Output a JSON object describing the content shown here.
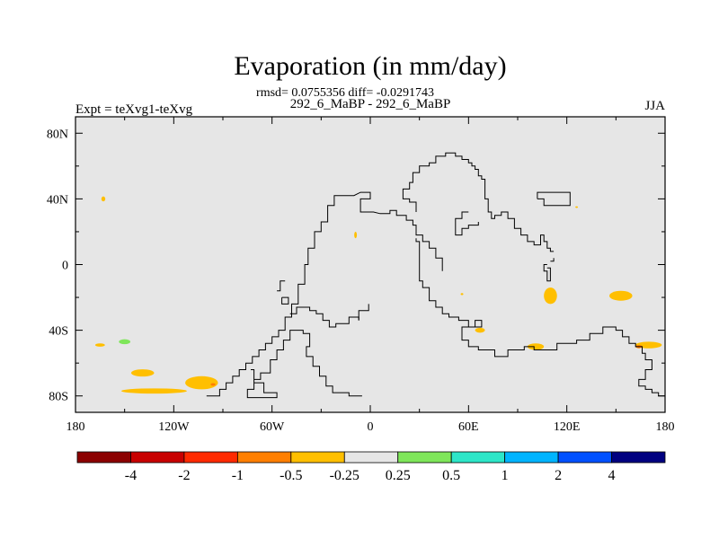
{
  "chart_data": {
    "type": "heatmap",
    "title": "Evaporation (in mm/day)",
    "stats": "rmsd= 0.0755356 diff= -0.0291743",
    "subtitle": "292_6_MaBP - 292_6_MaBP",
    "left_label": "Expt = teXvg1-teXvg",
    "right_label": "JJA",
    "xlim": [
      -180,
      180
    ],
    "ylim": [
      -90,
      90
    ],
    "x_ticks": [
      {
        "value": -180,
        "label": "180"
      },
      {
        "value": -120,
        "label": "120W"
      },
      {
        "value": -60,
        "label": "60W"
      },
      {
        "value": 0,
        "label": "0"
      },
      {
        "value": 60,
        "label": "60E"
      },
      {
        "value": 120,
        "label": "120E"
      },
      {
        "value": 180,
        "label": "180"
      }
    ],
    "y_ticks": [
      {
        "value": 80,
        "label": "80N"
      },
      {
        "value": 40,
        "label": "40N"
      },
      {
        "value": 0,
        "label": "0"
      },
      {
        "value": -40,
        "label": "40S"
      },
      {
        "value": -80,
        "label": "80S"
      }
    ],
    "colorbar": {
      "colors": [
        "#8b0000",
        "#c80000",
        "#ff2a00",
        "#ff7f00",
        "#ffbf00",
        "#e6e6e6",
        "#7fe65a",
        "#2de6c8",
        "#00b4ff",
        "#0050ff",
        "#000080"
      ],
      "labels": [
        "-4",
        "-2",
        "-1",
        "-0.5",
        "-0.25",
        "0.25",
        "0.5",
        "1",
        "2",
        "4"
      ]
    },
    "anomalies": [
      {
        "lon": -165,
        "lat": -49,
        "rx": 3,
        "ry": 1.0,
        "color": "#ffbf00"
      },
      {
        "lon": -150,
        "lat": -47,
        "rx": 3.5,
        "ry": 1.5,
        "color": "#7fe65a"
      },
      {
        "lon": -139,
        "lat": -66,
        "rx": 7,
        "ry": 2.2,
        "color": "#ffbf00"
      },
      {
        "lon": -132,
        "lat": -77,
        "rx": 20,
        "ry": 1.6,
        "color": "#ffbf00"
      },
      {
        "lon": -103,
        "lat": -72,
        "rx": 10,
        "ry": 4.0,
        "color": "#ffbf00"
      },
      {
        "lon": -96,
        "lat": -73,
        "rx": 1.5,
        "ry": 0.8,
        "color": "#ff7f00"
      },
      {
        "lon": -163,
        "lat": 40,
        "rx": 1.2,
        "ry": 1.5,
        "color": "#ffbf00"
      },
      {
        "lon": -9,
        "lat": 18,
        "rx": 0.8,
        "ry": 2.0,
        "color": "#ffbf00"
      },
      {
        "lon": 67,
        "lat": -40,
        "rx": 3,
        "ry": 1.5,
        "color": "#ffbf00"
      },
      {
        "lon": 101,
        "lat": -50,
        "rx": 5,
        "ry": 2.0,
        "color": "#ffbf00"
      },
      {
        "lon": 110,
        "lat": -19,
        "rx": 4,
        "ry": 5.0,
        "color": "#ffbf00"
      },
      {
        "lon": 153,
        "lat": -19,
        "rx": 7,
        "ry": 3.0,
        "color": "#ffbf00"
      },
      {
        "lon": 170,
        "lat": -49,
        "rx": 8,
        "ry": 2.0,
        "color": "#ffbf00"
      },
      {
        "lon": 164,
        "lat": -50,
        "rx": 2,
        "ry": 1.0,
        "color": "#ff7f00"
      },
      {
        "lon": 126,
        "lat": 35,
        "rx": 0.8,
        "ry": 0.5,
        "color": "#ffbf00"
      },
      {
        "lon": 56,
        "lat": -18,
        "rx": 0.8,
        "ry": 0.6,
        "color": "#ffbf00"
      }
    ],
    "coastlines": [
      [
        [
          -100,
          -80
        ],
        [
          -92,
          -80
        ],
        [
          -92,
          -76
        ],
        [
          -88,
          -76
        ],
        [
          -88,
          -72
        ],
        [
          -84,
          -72
        ],
        [
          -84,
          -68
        ],
        [
          -80,
          -68
        ],
        [
          -80,
          -64
        ],
        [
          -76,
          -64
        ],
        [
          -76,
          -60
        ],
        [
          -72,
          -60
        ],
        [
          -72,
          -56
        ],
        [
          -68,
          -56
        ],
        [
          -68,
          -52
        ],
        [
          -64,
          -52
        ],
        [
          -64,
          -48
        ],
        [
          -60,
          -48
        ],
        [
          -60,
          -44
        ],
        [
          -56,
          -44
        ],
        [
          -56,
          -40
        ],
        [
          -52,
          -40
        ],
        [
          -52,
          -32
        ],
        [
          -48,
          -32
        ],
        [
          -48,
          -24
        ],
        [
          -44,
          -24
        ],
        [
          -44,
          -12
        ],
        [
          -40,
          -12
        ],
        [
          -40,
          0
        ],
        [
          -38,
          0
        ],
        [
          -38,
          10
        ],
        [
          -34,
          10
        ],
        [
          -34,
          20
        ],
        [
          -30,
          20
        ],
        [
          -30,
          26
        ],
        [
          -26,
          26
        ],
        [
          -26,
          36
        ],
        [
          -22,
          36
        ],
        [
          -22,
          42
        ],
        [
          -10,
          42
        ],
        [
          -6,
          44
        ],
        [
          0,
          44
        ],
        [
          0,
          40
        ],
        [
          -6,
          40
        ],
        [
          -6,
          32
        ],
        [
          2,
          32
        ],
        [
          6,
          31
        ],
        [
          12,
          31
        ],
        [
          12,
          33
        ],
        [
          16,
          33
        ],
        [
          16,
          30
        ],
        [
          22,
          30
        ],
        [
          22,
          27
        ],
        [
          26,
          27
        ],
        [
          26,
          24
        ],
        [
          28,
          24
        ],
        [
          28,
          18
        ],
        [
          32,
          18
        ],
        [
          32,
          14
        ],
        [
          36,
          14
        ],
        [
          36,
          10
        ],
        [
          40,
          10
        ],
        [
          40,
          4
        ],
        [
          44,
          4
        ],
        [
          44,
          -4
        ]
      ],
      [
        [
          -73,
          -64
        ],
        [
          -71,
          -64
        ],
        [
          -71,
          -72
        ],
        [
          -65,
          -72
        ],
        [
          -65,
          -78
        ],
        [
          -57,
          -78
        ],
        [
          -57,
          -81
        ],
        [
          -75,
          -81
        ],
        [
          -75,
          -76
        ],
        [
          -71,
          -76
        ],
        [
          -71,
          -70
        ],
        [
          -67,
          -70
        ],
        [
          -67,
          -66
        ],
        [
          -61,
          -66
        ],
        [
          -61,
          -58
        ],
        [
          -57,
          -58
        ],
        [
          -57,
          -52
        ],
        [
          -53,
          -52
        ],
        [
          -53,
          -46
        ],
        [
          -49,
          -46
        ],
        [
          -49,
          -40
        ],
        [
          -41,
          -40
        ],
        [
          -41,
          -42
        ],
        [
          -37,
          -42
        ],
        [
          -37,
          -50
        ],
        [
          -39,
          -50
        ],
        [
          -39,
          -56
        ],
        [
          -35,
          -56
        ],
        [
          -35,
          -62
        ],
        [
          -31,
          -62
        ],
        [
          -31,
          -68
        ],
        [
          -27,
          -68
        ],
        [
          -27,
          -74
        ],
        [
          -23,
          -74
        ],
        [
          -23,
          -78
        ],
        [
          -13,
          -78
        ],
        [
          -13,
          -80
        ],
        [
          -5,
          -80
        ]
      ],
      [
        [
          -54,
          -20
        ],
        [
          -50,
          -20
        ],
        [
          -50,
          -24
        ],
        [
          -54,
          -24
        ],
        [
          -54,
          -20
        ]
      ],
      [
        [
          -49,
          -30
        ],
        [
          -45,
          -30
        ],
        [
          -45,
          -26
        ],
        [
          -37,
          -26
        ],
        [
          -37,
          -28
        ],
        [
          -33,
          -28
        ],
        [
          -33,
          -30
        ],
        [
          -29,
          -30
        ],
        [
          -29,
          -34
        ],
        [
          -25,
          -34
        ],
        [
          -25,
          -38
        ],
        [
          -21,
          -38
        ],
        [
          -21,
          -36
        ],
        [
          -13,
          -36
        ],
        [
          -13,
          -32
        ],
        [
          -7,
          -32
        ],
        [
          -7,
          -34
        ]
      ],
      [
        [
          -7,
          -34
        ],
        [
          -7,
          -28
        ],
        [
          -1,
          -28
        ],
        [
          -1,
          -24
        ]
      ],
      [
        [
          28,
          16
        ],
        [
          28,
          14
        ],
        [
          30,
          14
        ],
        [
          30,
          -10
        ],
        [
          32,
          -10
        ],
        [
          32,
          -14
        ],
        [
          36,
          -14
        ],
        [
          36,
          -22
        ],
        [
          40,
          -22
        ],
        [
          40,
          -26
        ],
        [
          44,
          -26
        ],
        [
          44,
          -30
        ],
        [
          48,
          -30
        ],
        [
          48,
          -32
        ],
        [
          54,
          -32
        ],
        [
          54,
          -34
        ],
        [
          60,
          -34
        ],
        [
          60,
          -38
        ],
        [
          64,
          -38
        ],
        [
          64,
          -34
        ],
        [
          68,
          -34
        ],
        [
          68,
          -38
        ],
        [
          56,
          -38
        ],
        [
          56,
          -46
        ],
        [
          60,
          -46
        ],
        [
          60,
          -50
        ],
        [
          66,
          -50
        ],
        [
          66,
          -52
        ],
        [
          76,
          -52
        ],
        [
          76,
          -56
        ],
        [
          84,
          -56
        ],
        [
          84,
          -52
        ],
        [
          94,
          -52
        ],
        [
          94,
          -50
        ],
        [
          100,
          -50
        ],
        [
          100,
          -52
        ],
        [
          114,
          -52
        ],
        [
          114,
          -48
        ],
        [
          126,
          -48
        ],
        [
          126,
          -46
        ],
        [
          134,
          -46
        ],
        [
          134,
          -42
        ],
        [
          142,
          -42
        ],
        [
          142,
          -38
        ],
        [
          150,
          -38
        ],
        [
          150,
          -40
        ],
        [
          154,
          -40
        ],
        [
          154,
          -44
        ],
        [
          158,
          -44
        ],
        [
          158,
          -48
        ],
        [
          162,
          -48
        ],
        [
          162,
          -50
        ],
        [
          166,
          -50
        ],
        [
          166,
          -54
        ],
        [
          168,
          -54
        ],
        [
          168,
          -58
        ],
        [
          172,
          -58
        ],
        [
          172,
          -64
        ],
        [
          168,
          -64
        ],
        [
          168,
          -70
        ],
        [
          164,
          -70
        ],
        [
          164,
          -74
        ],
        [
          168,
          -74
        ],
        [
          168,
          -76
        ],
        [
          172,
          -76
        ],
        [
          172,
          -78
        ],
        [
          176,
          -78
        ],
        [
          176,
          -80
        ],
        [
          180,
          -80
        ]
      ],
      [
        [
          28,
          32
        ],
        [
          28,
          38
        ],
        [
          24,
          38
        ],
        [
          24,
          40
        ],
        [
          20,
          40
        ],
        [
          20,
          46
        ],
        [
          24,
          46
        ],
        [
          24,
          50
        ],
        [
          26,
          50
        ],
        [
          26,
          56
        ],
        [
          30,
          56
        ],
        [
          30,
          60
        ],
        [
          36,
          60
        ],
        [
          36,
          62
        ],
        [
          40,
          62
        ],
        [
          40,
          66
        ],
        [
          46,
          66
        ],
        [
          46,
          68
        ],
        [
          52,
          68
        ],
        [
          52,
          66
        ],
        [
          56,
          66
        ],
        [
          56,
          64
        ],
        [
          60,
          64
        ],
        [
          60,
          62
        ],
        [
          62,
          62
        ],
        [
          62,
          60
        ],
        [
          64,
          60
        ],
        [
          64,
          58
        ],
        [
          66,
          58
        ],
        [
          66,
          54
        ],
        [
          68,
          54
        ],
        [
          68,
          52
        ],
        [
          70,
          52
        ],
        [
          70,
          40
        ],
        [
          72,
          40
        ],
        [
          72,
          32
        ],
        [
          74,
          32
        ],
        [
          74,
          28
        ],
        [
          76,
          28
        ],
        [
          76,
          30
        ],
        [
          80,
          30
        ],
        [
          80,
          32
        ],
        [
          84,
          32
        ],
        [
          84,
          28
        ],
        [
          88,
          28
        ],
        [
          88,
          22
        ],
        [
          92,
          22
        ],
        [
          92,
          18
        ],
        [
          96,
          18
        ],
        [
          96,
          14
        ],
        [
          100,
          14
        ],
        [
          100,
          12
        ],
        [
          104,
          12
        ],
        [
          104,
          18
        ],
        [
          106,
          18
        ],
        [
          106,
          14
        ],
        [
          108,
          14
        ],
        [
          108,
          10
        ],
        [
          110,
          10
        ],
        [
          110,
          8
        ],
        [
          112,
          8
        ]
      ],
      [
        [
          60,
          32
        ],
        [
          56,
          32
        ],
        [
          56,
          28
        ],
        [
          52,
          28
        ],
        [
          52,
          18
        ],
        [
          56,
          18
        ],
        [
          56,
          22
        ],
        [
          60,
          22
        ],
        [
          60,
          24
        ],
        [
          66,
          24
        ],
        [
          66,
          26
        ]
      ],
      [
        [
          102,
          40
        ],
        [
          102,
          44
        ],
        [
          122,
          44
        ],
        [
          122,
          36
        ],
        [
          106,
          36
        ],
        [
          106,
          40
        ],
        [
          102,
          40
        ]
      ],
      [
        [
          108,
          0
        ],
        [
          106,
          0
        ],
        [
          106,
          -4
        ],
        [
          108,
          -4
        ],
        [
          108,
          -10
        ],
        [
          110,
          -10
        ],
        [
          110,
          -2
        ],
        [
          108,
          -2
        ]
      ],
      [
        [
          110,
          2
        ],
        [
          112,
          2
        ],
        [
          112,
          4
        ]
      ],
      [
        [
          -57,
          -16
        ],
        [
          -55,
          -16
        ],
        [
          -55,
          -10
        ],
        [
          -52,
          -10
        ]
      ]
    ]
  }
}
